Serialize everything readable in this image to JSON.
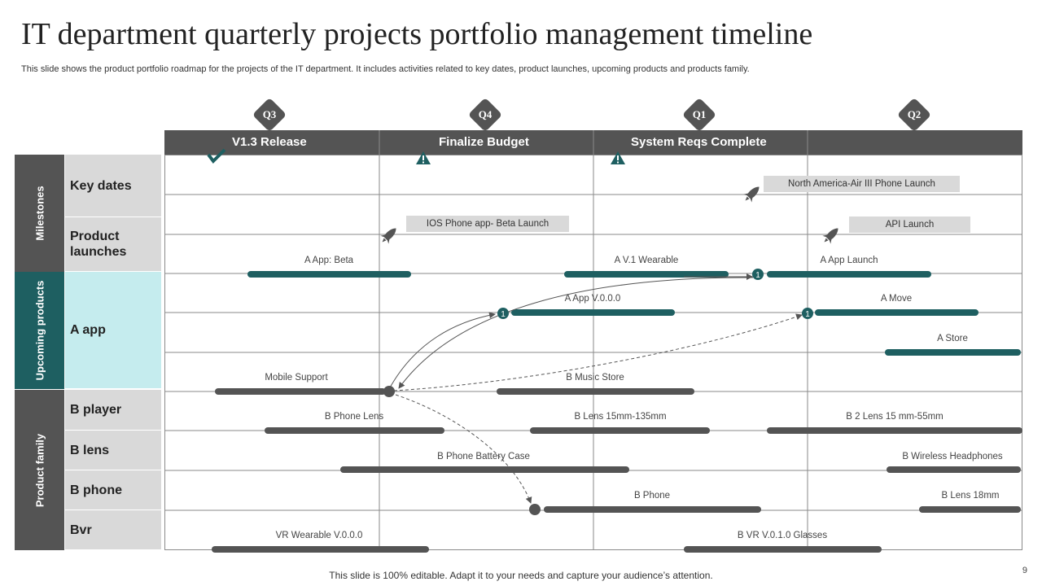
{
  "title": "IT department quarterly projects portfolio management timeline",
  "subtitle": "This slide shows the product portfolio roadmap for the projects of the IT department. It includes activities related to key dates, product launches, upcoming products and products family.",
  "footer": "This slide is 100% editable. Adapt it to your needs and capture your audience’s attention.",
  "page_number": "9",
  "quarters": [
    "Q3",
    "Q4",
    "Q1",
    "Q2"
  ],
  "milestone_headers": [
    "V1.3 Release",
    "Finalize Budget",
    "System Reqs Complete",
    ""
  ],
  "categories": [
    {
      "label": "Milestones",
      "color": "#545454"
    },
    {
      "label": "Upcoming products",
      "color": "#1e5f61"
    },
    {
      "label": "Product family",
      "color": "#545454"
    }
  ],
  "rows": [
    {
      "label": "Key dates",
      "bg": "#d9d9d9"
    },
    {
      "label": "Product\nlaunches",
      "bg": "#d9d9d9"
    },
    {
      "label": "A app",
      "bg": "#c5ecee"
    },
    {
      "label": "B player",
      "bg": "#d9d9d9"
    },
    {
      "label": "B lens",
      "bg": "#d9d9d9"
    },
    {
      "label": "B phone",
      "bg": "#d9d9d9"
    },
    {
      "label": "Bvr",
      "bg": "#d9d9d9"
    }
  ],
  "launch_boxes": [
    "North America-Air III Phone Launch",
    "IOS Phone app- Beta Launch",
    "API Launch"
  ],
  "upcoming_labels": [
    "A App: Beta",
    "A V.1 Wearable",
    "A App Launch",
    "A App V.0.0.0",
    "A Move",
    "A Store"
  ],
  "family_labels": [
    "Mobile Support",
    "B Music Store",
    "B Phone Lens",
    "B Lens 15mm-135mm",
    "B 2 Lens 15 mm-55mm",
    "B Phone Battery Case",
    "B Wireless Headphones",
    "B Phone",
    "B Lens 18mm",
    "VR Wearable V.0.0.0",
    "B VR V.0.1.0 Glasses"
  ],
  "marker_number": "1",
  "colors": {
    "teal": "#1e5f61",
    "dark_gray": "#545454",
    "light_gray": "#d9d9d9",
    "light_teal": "#c5ecee"
  }
}
